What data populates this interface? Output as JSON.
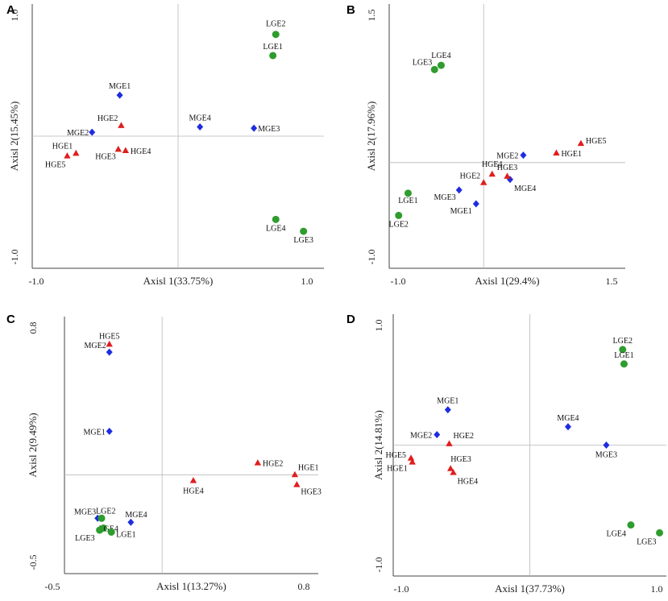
{
  "colors": {
    "LGE": "#2e9c2e",
    "MGE": "#1e2de0",
    "HGE": "#e01e1e"
  },
  "chart_data": [
    {
      "panel": "A",
      "type": "scatter",
      "xlabel": "Axisl 1(33.75%)",
      "ylabel": "Axisl 2(15.45%)",
      "xlim": [
        -1.0,
        1.0
      ],
      "ylim": [
        -1.0,
        1.0
      ],
      "xticks": [
        "-1.0",
        "1.0"
      ],
      "yticks": [
        "1.0",
        "-1.0"
      ],
      "points": [
        {
          "label": "LGE2",
          "group": "LGE",
          "x": 0.67,
          "y": 0.77
        },
        {
          "label": "LGE1",
          "group": "LGE",
          "x": 0.65,
          "y": 0.61
        },
        {
          "label": "LGE4",
          "group": "LGE",
          "x": 0.67,
          "y": -0.63
        },
        {
          "label": "LGE3",
          "group": "LGE",
          "x": 0.86,
          "y": -0.72
        },
        {
          "label": "MGE1",
          "group": "MGE",
          "x": -0.4,
          "y": 0.31
        },
        {
          "label": "MGE2",
          "group": "MGE",
          "x": -0.59,
          "y": 0.03
        },
        {
          "label": "MGE4",
          "group": "MGE",
          "x": 0.15,
          "y": 0.07
        },
        {
          "label": "MGE3",
          "group": "MGE",
          "x": 0.52,
          "y": 0.06
        },
        {
          "label": "HGE2",
          "group": "HGE",
          "x": -0.39,
          "y": 0.08
        },
        {
          "label": "HGE1",
          "group": "HGE",
          "x": -0.7,
          "y": -0.13
        },
        {
          "label": "HGE5",
          "group": "HGE",
          "x": -0.76,
          "y": -0.15
        },
        {
          "label": "HGE3",
          "group": "HGE",
          "x": -0.41,
          "y": -0.1
        },
        {
          "label": "HGE4",
          "group": "HGE",
          "x": -0.36,
          "y": -0.11
        }
      ]
    },
    {
      "panel": "B",
      "type": "scatter",
      "xlabel": "Axisl 1(29.4%)",
      "ylabel": "Axisl 2(17.96%)",
      "xlim": [
        -1.0,
        1.5
      ],
      "ylim": [
        -1.0,
        1.5
      ],
      "xticks": [
        "-1.0",
        "1.5"
      ],
      "yticks": [
        "1.5",
        "-1.0"
      ],
      "points": [
        {
          "label": "LGE4",
          "group": "LGE",
          "x": -0.45,
          "y": 0.92
        },
        {
          "label": "LGE3",
          "group": "LGE",
          "x": -0.52,
          "y": 0.88
        },
        {
          "label": "LGE1",
          "group": "LGE",
          "x": -0.8,
          "y": -0.29
        },
        {
          "label": "LGE2",
          "group": "LGE",
          "x": -0.9,
          "y": -0.5
        },
        {
          "label": "MGE2",
          "group": "MGE",
          "x": 0.42,
          "y": 0.07
        },
        {
          "label": "MGE4",
          "group": "MGE",
          "x": 0.28,
          "y": -0.16
        },
        {
          "label": "MGE3",
          "group": "MGE",
          "x": -0.26,
          "y": -0.26
        },
        {
          "label": "MGE1",
          "group": "MGE",
          "x": -0.08,
          "y": -0.39
        },
        {
          "label": "HGE5",
          "group": "HGE",
          "x": 1.03,
          "y": 0.18
        },
        {
          "label": "HGE1",
          "group": "HGE",
          "x": 0.77,
          "y": 0.09
        },
        {
          "label": "HGE3",
          "group": "HGE",
          "x": 0.25,
          "y": -0.13
        },
        {
          "label": "HGE4",
          "group": "HGE",
          "x": 0.09,
          "y": -0.11
        },
        {
          "label": "HGE2",
          "group": "HGE",
          "x": 0.0,
          "y": -0.19
        }
      ]
    },
    {
      "panel": "C",
      "type": "scatter",
      "xlabel": "Axisl 1(13.27%)",
      "ylabel": "Axisl 2(9.49%)",
      "xlim": [
        -0.5,
        0.8
      ],
      "ylim": [
        -0.5,
        0.8
      ],
      "xticks": [
        "-0.5",
        "0.8"
      ],
      "yticks": [
        "0.8",
        "-0.5"
      ],
      "points": [
        {
          "label": "HGE5",
          "group": "HGE",
          "x": -0.27,
          "y": 0.66
        },
        {
          "label": "MGE2",
          "group": "MGE",
          "x": -0.27,
          "y": 0.62
        },
        {
          "label": "MGE1",
          "group": "MGE",
          "x": -0.27,
          "y": 0.22
        },
        {
          "label": "HGE2",
          "group": "HGE",
          "x": 0.49,
          "y": 0.06
        },
        {
          "label": "HGE1",
          "group": "HGE",
          "x": 0.68,
          "y": 0.0
        },
        {
          "label": "HGE3",
          "group": "HGE",
          "x": 0.69,
          "y": -0.05
        },
        {
          "label": "HGE4",
          "group": "HGE",
          "x": 0.16,
          "y": -0.03
        },
        {
          "label": "MGE3",
          "group": "MGE",
          "x": -0.33,
          "y": -0.22
        },
        {
          "label": "MGE4",
          "group": "MGE",
          "x": -0.16,
          "y": -0.24
        },
        {
          "label": "LGE2",
          "group": "LGE",
          "x": -0.31,
          "y": -0.22
        },
        {
          "label": "LGE4",
          "group": "LGE",
          "x": -0.3,
          "y": -0.27
        },
        {
          "label": "LGE3",
          "group": "LGE",
          "x": -0.32,
          "y": -0.28
        },
        {
          "label": "LGE1",
          "group": "LGE",
          "x": -0.26,
          "y": -0.29
        }
      ]
    },
    {
      "panel": "D",
      "type": "scatter",
      "xlabel": "Axisl 1(37.73%)",
      "ylabel": "Axisl 2(14.81%)",
      "xlim": [
        -1.0,
        1.0
      ],
      "ylim": [
        -1.0,
        1.0
      ],
      "xticks": [
        "-1.0",
        "1.0"
      ],
      "yticks": [
        "1.0",
        "-1.0"
      ],
      "points": [
        {
          "label": "LGE2",
          "group": "LGE",
          "x": 0.68,
          "y": 0.73
        },
        {
          "label": "LGE1",
          "group": "LGE",
          "x": 0.69,
          "y": 0.62
        },
        {
          "label": "LGE4",
          "group": "LGE",
          "x": 0.74,
          "y": -0.61
        },
        {
          "label": "LGE3",
          "group": "LGE",
          "x": 0.95,
          "y": -0.67
        },
        {
          "label": "MGE1",
          "group": "MGE",
          "x": -0.6,
          "y": 0.27
        },
        {
          "label": "MGE2",
          "group": "MGE",
          "x": -0.68,
          "y": 0.08
        },
        {
          "label": "MGE4",
          "group": "MGE",
          "x": 0.28,
          "y": 0.14
        },
        {
          "label": "MGE3",
          "group": "MGE",
          "x": 0.56,
          "y": 0.0
        },
        {
          "label": "HGE2",
          "group": "HGE",
          "x": -0.59,
          "y": 0.01
        },
        {
          "label": "HGE5",
          "group": "HGE",
          "x": -0.87,
          "y": -0.1
        },
        {
          "label": "HGE1",
          "group": "HGE",
          "x": -0.86,
          "y": -0.13
        },
        {
          "label": "HGE3",
          "group": "HGE",
          "x": -0.58,
          "y": -0.18
        },
        {
          "label": "HGE4",
          "group": "HGE",
          "x": -0.56,
          "y": -0.21
        }
      ]
    }
  ]
}
